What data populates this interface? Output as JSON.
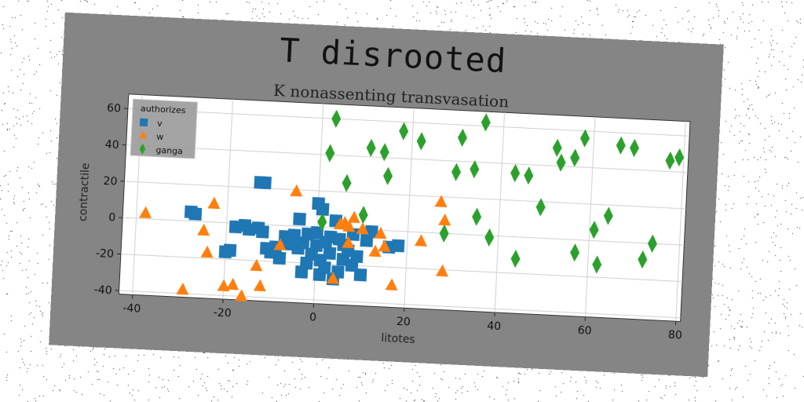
{
  "chart_data": {
    "type": "scatter",
    "title": "T disrooted",
    "subtitle": "K nonassenting transvasation",
    "xlabel": "litotes",
    "ylabel": "contractile",
    "xlim": [
      -43,
      81
    ],
    "ylim": [
      -42,
      68
    ],
    "xticks": [
      -40,
      -20,
      0,
      20,
      40,
      60,
      80
    ],
    "yticks": [
      -40,
      -20,
      0,
      20,
      40,
      60
    ],
    "grid": true,
    "legend": {
      "title": "authorizes",
      "placement": "top-left"
    },
    "series": [
      {
        "name": "v",
        "color": "#1f77b4",
        "marker": "square",
        "points": [
          [
            -28,
            5
          ],
          [
            -27,
            4
          ],
          [
            -13,
            23
          ],
          [
            -12,
            23
          ],
          [
            -20,
            -16
          ],
          [
            -19,
            -15
          ],
          [
            -18,
            -2
          ],
          [
            -16,
            -1
          ],
          [
            -15,
            -3
          ],
          [
            -13,
            -2
          ],
          [
            -12,
            -4
          ],
          [
            -11,
            -13
          ],
          [
            -10,
            -15
          ],
          [
            -9,
            -12
          ],
          [
            -8,
            -18
          ],
          [
            -7,
            -6
          ],
          [
            -6,
            -10
          ],
          [
            -5,
            -5
          ],
          [
            -4,
            4
          ],
          [
            -4,
            -12
          ],
          [
            -3,
            -9
          ],
          [
            -3,
            -25
          ],
          [
            -2,
            -20
          ],
          [
            -1,
            -15
          ],
          [
            0,
            -10
          ],
          [
            0,
            -3
          ],
          [
            0,
            13
          ],
          [
            1,
            10
          ],
          [
            1,
            -18
          ],
          [
            1,
            -26
          ],
          [
            2,
            -22
          ],
          [
            3,
            -14
          ],
          [
            3,
            -5
          ],
          [
            4,
            4
          ],
          [
            4,
            -28
          ],
          [
            5,
            -24
          ],
          [
            6,
            -17
          ],
          [
            6,
            -9
          ],
          [
            7,
            -12
          ],
          [
            8,
            -20
          ],
          [
            8,
            -3
          ],
          [
            9,
            -15
          ],
          [
            10,
            -25
          ],
          [
            11,
            -6
          ],
          [
            12,
            -1
          ],
          [
            16,
            -9
          ],
          [
            18,
            -8
          ],
          [
            -2,
            -4
          ],
          [
            2,
            -8
          ],
          [
            5,
            -6
          ]
        ]
      },
      {
        "name": "w",
        "color": "#ff7f0e",
        "marker": "triangle",
        "points": [
          [
            -38,
            3
          ],
          [
            -29,
            -38
          ],
          [
            -25,
            -5
          ],
          [
            -24,
            -17
          ],
          [
            -23,
            10
          ],
          [
            -20,
            -35
          ],
          [
            -18,
            -34
          ],
          [
            -16,
            -40
          ],
          [
            -13,
            -23
          ],
          [
            -12,
            -34
          ],
          [
            -8,
            -11
          ],
          [
            -5,
            19
          ],
          [
            4,
            -28
          ],
          [
            5,
            2
          ],
          [
            6,
            3
          ],
          [
            7,
            1
          ],
          [
            7,
            -8
          ],
          [
            8,
            6
          ],
          [
            10,
            0
          ],
          [
            13,
            -12
          ],
          [
            14,
            -2
          ],
          [
            15,
            -9
          ],
          [
            17,
            -30
          ],
          [
            23,
            -5
          ],
          [
            27,
            17
          ],
          [
            28,
            -21
          ],
          [
            28,
            7
          ]
        ]
      },
      {
        "name": "ganga",
        "color": "#2ca02c",
        "marker": "diamond",
        "points": [
          [
            3,
            60
          ],
          [
            2,
            41
          ],
          [
            1,
            3
          ],
          [
            6,
            25
          ],
          [
            10,
            8
          ],
          [
            11,
            45
          ],
          [
            14,
            43
          ],
          [
            15,
            30
          ],
          [
            18,
            55
          ],
          [
            22,
            50
          ],
          [
            28,
            0
          ],
          [
            30,
            34
          ],
          [
            31,
            53
          ],
          [
            34,
            36
          ],
          [
            35,
            10
          ],
          [
            36,
            62
          ],
          [
            38,
            -1
          ],
          [
            43,
            35
          ],
          [
            44,
            -12
          ],
          [
            46,
            34
          ],
          [
            49,
            17
          ],
          [
            52,
            50
          ],
          [
            53,
            42
          ],
          [
            56,
            45
          ],
          [
            57,
            -7
          ],
          [
            58,
            56
          ],
          [
            61,
            6
          ],
          [
            62,
            -13
          ],
          [
            64,
            14
          ],
          [
            66,
            53
          ],
          [
            69,
            52
          ],
          [
            72,
            -9
          ],
          [
            74,
            0
          ],
          [
            77,
            46
          ],
          [
            79,
            48
          ]
        ]
      }
    ]
  }
}
